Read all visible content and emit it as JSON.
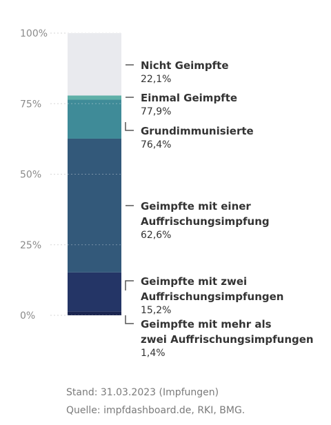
{
  "chart_data": {
    "type": "bar",
    "stacked": true,
    "y_ticks": [
      "100%",
      "75%",
      "50%",
      "25%",
      "0%"
    ],
    "ylim": [
      0,
      100
    ],
    "grid": true,
    "segments": [
      {
        "from": 0,
        "to": 1.4,
        "color": "#1b2550"
      },
      {
        "from": 1.4,
        "to": 15.2,
        "color": "#243566"
      },
      {
        "from": 15.2,
        "to": 62.6,
        "color": "#33597a"
      },
      {
        "from": 62.6,
        "to": 76.4,
        "color": "#3f8b98"
      },
      {
        "from": 76.4,
        "to": 77.9,
        "color": "#5fb0a8"
      },
      {
        "from": 77.9,
        "to": 100,
        "color": "#e9eaee"
      }
    ],
    "annotations": [
      {
        "name_lines": [
          "Nicht Geimpfte"
        ],
        "value": "22,1%",
        "anchor": 89,
        "bracket": "flat"
      },
      {
        "name_lines": [
          "Einmal Geimpfte"
        ],
        "value": "77,9%",
        "anchor": 77.5,
        "bracket": "flat"
      },
      {
        "name_lines": [
          "Grundimmunisierte"
        ],
        "value": "76,4%",
        "anchor": 76.4,
        "bracket": "down"
      },
      {
        "name_lines": [
          "Geimpfte mit einer",
          "Auffrischungsimpfung"
        ],
        "value": "62,6%",
        "anchor": 39,
        "bracket": "flat"
      },
      {
        "name_lines": [
          "Geimpfte mit zwei",
          "Auffrischungsimpfungen"
        ],
        "value": "15,2%",
        "anchor": 15.2,
        "bracket": "up"
      },
      {
        "name_lines": [
          "Geimpfte mit mehr als",
          "zwei Auffrischungsimpfungen"
        ],
        "value": "1,4%",
        "anchor": 1.4,
        "bracket": "down"
      }
    ]
  },
  "footer": {
    "stand": "Stand: 31.03.2023 (Impfungen)",
    "source": "Quelle: impfdashboard.de, RKI, BMG."
  }
}
